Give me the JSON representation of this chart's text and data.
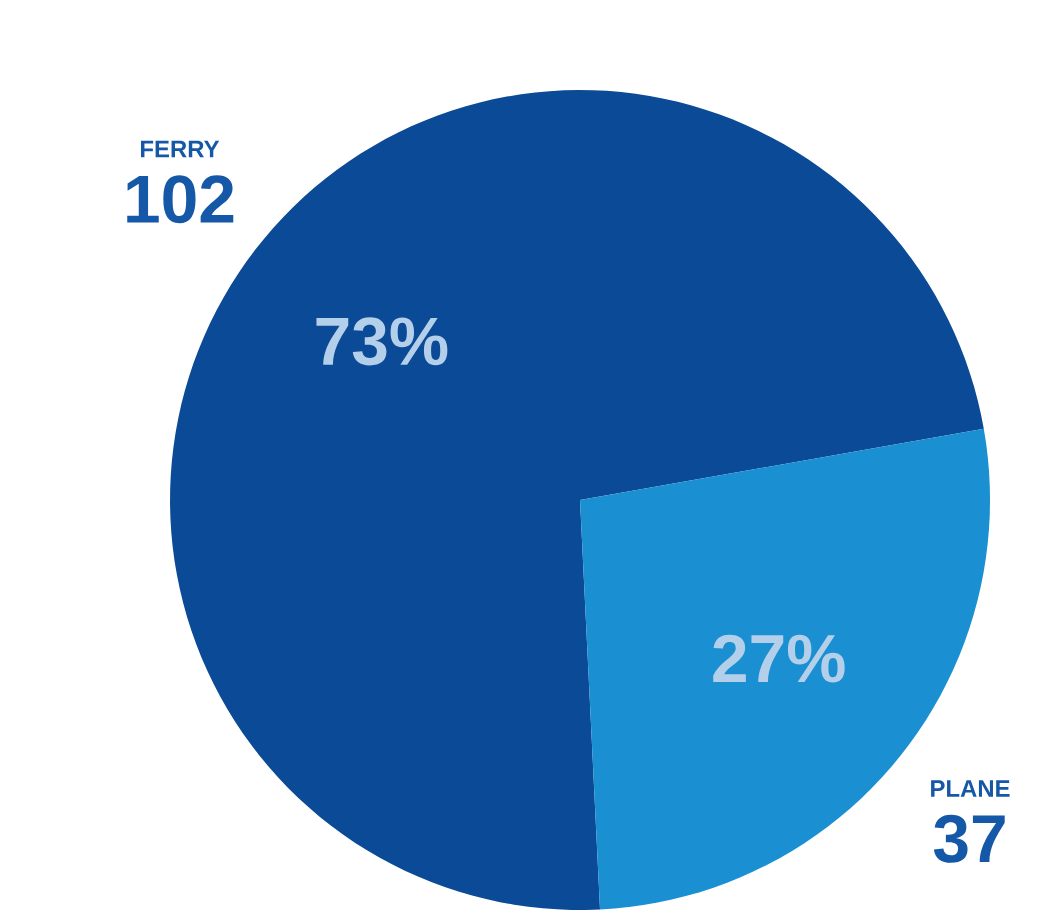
{
  "chart_data": {
    "type": "pie",
    "categories": [
      "FERRY",
      "PLANE"
    ],
    "values": [
      73,
      27
    ],
    "colors": [
      "#0b4a96",
      "#1a90d2"
    ],
    "value_labels": [
      "73%",
      "27%"
    ],
    "annotations": [
      "102",
      "37"
    ]
  }
}
